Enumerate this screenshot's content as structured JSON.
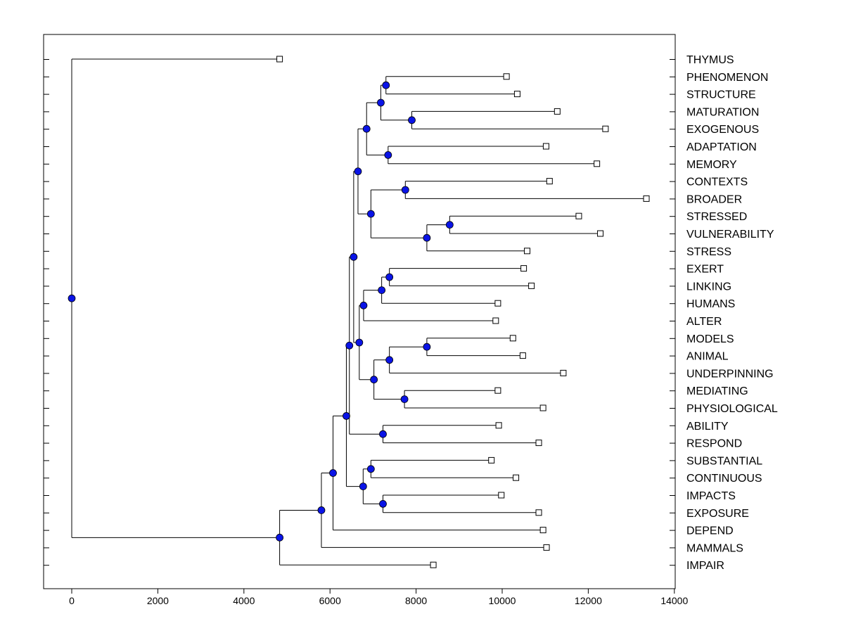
{
  "chart_data": {
    "type": "dendrogram",
    "title": "",
    "xlabel": "",
    "ylabel": "",
    "xlim": [
      -650,
      14000
    ],
    "x_ticks": [
      0,
      2000,
      4000,
      6000,
      8000,
      10000,
      12000,
      14000
    ],
    "tick_labels": [
      "0",
      "2000",
      "4000",
      "6000",
      "8000",
      "10000",
      "12000",
      "14000"
    ],
    "colors": {
      "node": "#0a14e6",
      "line": "#000000",
      "leaf_fill": "#ffffff"
    },
    "leaves": [
      {
        "label": "THYMUS",
        "value": 4830
      },
      {
        "label": "PHENOMENON",
        "value": 10100
      },
      {
        "label": "STRUCTURE",
        "value": 10350
      },
      {
        "label": "MATURATION",
        "value": 11280
      },
      {
        "label": "EXOGENOUS",
        "value": 12400
      },
      {
        "label": "ADAPTATION",
        "value": 11020
      },
      {
        "label": "MEMORY",
        "value": 12200
      },
      {
        "label": "CONTEXTS",
        "value": 11100
      },
      {
        "label": "BROADER",
        "value": 13350
      },
      {
        "label": "STRESSED",
        "value": 11780
      },
      {
        "label": "VULNERABILITY",
        "value": 12280
      },
      {
        "label": "STRESS",
        "value": 10580
      },
      {
        "label": "EXERT",
        "value": 10500
      },
      {
        "label": "LINKING",
        "value": 10680
      },
      {
        "label": "HUMANS",
        "value": 9900
      },
      {
        "label": "ALTER",
        "value": 9850
      },
      {
        "label": "MODELS",
        "value": 10250
      },
      {
        "label": "ANIMAL",
        "value": 10480
      },
      {
        "label": "UNDERPINNING",
        "value": 11420
      },
      {
        "label": "MEDIATING",
        "value": 9900
      },
      {
        "label": "PHYSIOLOGICAL",
        "value": 10950
      },
      {
        "label": "ABILITY",
        "value": 9920
      },
      {
        "label": "RESPOND",
        "value": 10850
      },
      {
        "label": "SUBSTANTIAL",
        "value": 9750
      },
      {
        "label": "CONTINUOUS",
        "value": 10320
      },
      {
        "label": "IMPACTS",
        "value": 9980
      },
      {
        "label": "EXPOSURE",
        "value": 10850
      },
      {
        "label": "DEPEND",
        "value": 10950
      },
      {
        "label": "MAMMALS",
        "value": 11030
      },
      {
        "label": "IMPAIR",
        "value": 8400
      }
    ],
    "merges": [
      {
        "id": "n1",
        "value": 7300,
        "children": [
          "PHENOMENON",
          "STRUCTURE"
        ]
      },
      {
        "id": "n2",
        "value": 7900,
        "children": [
          "MATURATION",
          "EXOGENOUS"
        ]
      },
      {
        "id": "n3",
        "value": 7180,
        "children": [
          "n1",
          "n2"
        ]
      },
      {
        "id": "n4",
        "value": 7350,
        "children": [
          "ADAPTATION",
          "MEMORY"
        ]
      },
      {
        "id": "n5",
        "value": 6850,
        "children": [
          "n3",
          "n4"
        ]
      },
      {
        "id": "n6",
        "value": 7750,
        "children": [
          "CONTEXTS",
          "BROADER"
        ]
      },
      {
        "id": "n7",
        "value": 8780,
        "children": [
          "STRESSED",
          "VULNERABILITY"
        ]
      },
      {
        "id": "n8",
        "value": 8250,
        "children": [
          "n7",
          "STRESS"
        ]
      },
      {
        "id": "n9",
        "value": 6950,
        "children": [
          "n6",
          "n8"
        ]
      },
      {
        "id": "n10",
        "value": 6650,
        "children": [
          "n5",
          "n9"
        ]
      },
      {
        "id": "n11",
        "value": 7380,
        "children": [
          "EXERT",
          "LINKING"
        ]
      },
      {
        "id": "n12",
        "value": 7200,
        "children": [
          "n11",
          "HUMANS"
        ]
      },
      {
        "id": "n13",
        "value": 6780,
        "children": [
          "n12",
          "ALTER"
        ]
      },
      {
        "id": "n14",
        "value": 8250,
        "children": [
          "MODELS",
          "ANIMAL"
        ]
      },
      {
        "id": "n15",
        "value": 7380,
        "children": [
          "n14",
          "UNDERPINNING"
        ]
      },
      {
        "id": "n16",
        "value": 7730,
        "children": [
          "MEDIATING",
          "PHYSIOLOGICAL"
        ]
      },
      {
        "id": "n17",
        "value": 7020,
        "children": [
          "n15",
          "n16"
        ]
      },
      {
        "id": "n18",
        "value": 6680,
        "children": [
          "n13",
          "n17"
        ]
      },
      {
        "id": "n19",
        "value": 6550,
        "children": [
          "n10",
          "n18"
        ]
      },
      {
        "id": "n20",
        "value": 7230,
        "children": [
          "ABILITY",
          "RESPOND"
        ]
      },
      {
        "id": "n21",
        "value": 6450,
        "children": [
          "n19",
          "n20"
        ]
      },
      {
        "id": "n22",
        "value": 6950,
        "children": [
          "SUBSTANTIAL",
          "CONTINUOUS"
        ]
      },
      {
        "id": "n23",
        "value": 7230,
        "children": [
          "IMPACTS",
          "EXPOSURE"
        ]
      },
      {
        "id": "n24",
        "value": 6770,
        "children": [
          "n22",
          "n23"
        ]
      },
      {
        "id": "n25",
        "value": 6380,
        "children": [
          "n21",
          "n24"
        ]
      },
      {
        "id": "n26",
        "value": 6070,
        "children": [
          "n25",
          "DEPEND"
        ]
      },
      {
        "id": "n27",
        "value": 5800,
        "children": [
          "n26",
          "MAMMALS"
        ]
      },
      {
        "id": "n28",
        "value": 4830,
        "children": [
          "n27",
          "IMPAIR"
        ]
      },
      {
        "id": "root",
        "value": 0,
        "children": [
          "THYMUS",
          "n28"
        ]
      }
    ]
  }
}
